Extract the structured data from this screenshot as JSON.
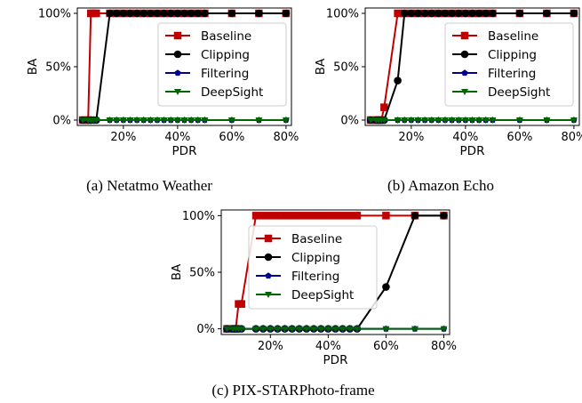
{
  "colors": {
    "Baseline": "#c00000",
    "Clipping": "#000000",
    "Filtering": "#00008b",
    "DeepSight": "#006400"
  },
  "chart_data": [
    {
      "type": "line",
      "caption": "(a) Netatmo Weather",
      "xlabel": "PDR",
      "ylabel": "BA",
      "xlim": [
        3,
        82
      ],
      "ylim": [
        -5,
        105
      ],
      "xticks": [
        {
          "v": 20,
          "label": "20%"
        },
        {
          "v": 40,
          "label": "40%"
        },
        {
          "v": 60,
          "label": "60%"
        },
        {
          "v": 80,
          "label": "80%"
        }
      ],
      "yticks": [
        {
          "v": 0,
          "label": "0%"
        },
        {
          "v": 50,
          "label": "50%"
        },
        {
          "v": 100,
          "label": "100%"
        }
      ],
      "legend_position": "center-right",
      "series": [
        {
          "name": "Baseline",
          "marker": "square",
          "x": [
            5,
            7,
            8,
            9,
            10,
            15,
            17.5,
            20,
            22.5,
            25,
            27.5,
            30,
            32.5,
            35,
            37.5,
            40,
            42.5,
            45,
            47.5,
            50,
            60,
            70,
            80
          ],
          "y": [
            0,
            0,
            100,
            100,
            100,
            100,
            100,
            100,
            100,
            100,
            100,
            100,
            100,
            100,
            100,
            100,
            100,
            100,
            100,
            100,
            100,
            100,
            100
          ]
        },
        {
          "name": "Clipping",
          "marker": "circle",
          "x": [
            5,
            7,
            8,
            9,
            10,
            15,
            17.5,
            20,
            22.5,
            25,
            27.5,
            30,
            32.5,
            35,
            37.5,
            40,
            42.5,
            45,
            47.5,
            50,
            60,
            70,
            80
          ],
          "y": [
            0,
            0,
            0,
            0,
            0,
            100,
            100,
            100,
            100,
            100,
            100,
            100,
            100,
            100,
            100,
            100,
            100,
            100,
            100,
            100,
            100,
            100,
            100
          ]
        },
        {
          "name": "Filtering",
          "marker": "pentagon",
          "x": [
            5,
            7,
            8,
            9,
            10,
            15,
            17.5,
            20,
            22.5,
            25,
            27.5,
            30,
            32.5,
            35,
            37.5,
            40,
            42.5,
            45,
            47.5,
            50,
            60,
            70,
            80
          ],
          "y": [
            0,
            0,
            0,
            0,
            0,
            0,
            0,
            0,
            0,
            0,
            0,
            0,
            0,
            0,
            0,
            0,
            0,
            0,
            0,
            0,
            0,
            0,
            0
          ]
        },
        {
          "name": "DeepSight",
          "marker": "triangle-down",
          "x": [
            5,
            7,
            8,
            9,
            10,
            15,
            17.5,
            20,
            22.5,
            25,
            27.5,
            30,
            32.5,
            35,
            37.5,
            40,
            42.5,
            45,
            47.5,
            50,
            60,
            70,
            80
          ],
          "y": [
            0,
            0,
            0,
            0,
            0,
            0,
            0,
            0,
            0,
            0,
            0,
            0,
            0,
            0,
            0,
            0,
            0,
            0,
            0,
            0,
            0,
            0,
            0
          ]
        }
      ]
    },
    {
      "type": "line",
      "caption": "(b) Amazon Echo",
      "xlabel": "PDR",
      "ylabel": "BA",
      "xlim": [
        3,
        82
      ],
      "ylim": [
        -5,
        105
      ],
      "xticks": [
        {
          "v": 20,
          "label": "20%"
        },
        {
          "v": 40,
          "label": "40%"
        },
        {
          "v": 60,
          "label": "60%"
        },
        {
          "v": 80,
          "label": "80%"
        }
      ],
      "yticks": [
        {
          "v": 0,
          "label": "0%"
        },
        {
          "v": 50,
          "label": "50%"
        },
        {
          "v": 100,
          "label": "100%"
        }
      ],
      "legend_position": "center-right",
      "series": [
        {
          "name": "Baseline",
          "marker": "square",
          "x": [
            5,
            7,
            8,
            9,
            10,
            15,
            17.5,
            20,
            22.5,
            25,
            27.5,
            30,
            32.5,
            35,
            37.5,
            40,
            42.5,
            45,
            47.5,
            50,
            60,
            70,
            80
          ],
          "y": [
            0,
            0,
            0,
            0,
            12,
            100,
            100,
            100,
            100,
            100,
            100,
            100,
            100,
            100,
            100,
            100,
            100,
            100,
            100,
            100,
            100,
            100,
            100
          ]
        },
        {
          "name": "Clipping",
          "marker": "circle",
          "x": [
            5,
            7,
            8,
            9,
            10,
            15,
            17.5,
            20,
            22.5,
            25,
            27.5,
            30,
            32.5,
            35,
            37.5,
            40,
            42.5,
            45,
            47.5,
            50,
            60,
            70,
            80
          ],
          "y": [
            0,
            0,
            0,
            0,
            0,
            37,
            100,
            100,
            100,
            100,
            100,
            100,
            100,
            100,
            100,
            100,
            100,
            100,
            100,
            100,
            100,
            100,
            100
          ]
        },
        {
          "name": "Filtering",
          "marker": "pentagon",
          "x": [
            5,
            7,
            8,
            9,
            10,
            15,
            17.5,
            20,
            22.5,
            25,
            27.5,
            30,
            32.5,
            35,
            37.5,
            40,
            42.5,
            45,
            47.5,
            50,
            60,
            70,
            80
          ],
          "y": [
            0,
            0,
            0,
            0,
            0,
            0,
            0,
            0,
            0,
            0,
            0,
            0,
            0,
            0,
            0,
            0,
            0,
            0,
            0,
            0,
            0,
            0,
            0
          ]
        },
        {
          "name": "DeepSight",
          "marker": "triangle-down",
          "x": [
            5,
            7,
            8,
            9,
            10,
            15,
            17.5,
            20,
            22.5,
            25,
            27.5,
            30,
            32.5,
            35,
            37.5,
            40,
            42.5,
            45,
            47.5,
            50,
            60,
            70,
            80
          ],
          "y": [
            0,
            0,
            0,
            0,
            0,
            0,
            0,
            0,
            0,
            0,
            0,
            0,
            0,
            0,
            0,
            0,
            0,
            0,
            0,
            0,
            0,
            0,
            0
          ]
        }
      ]
    },
    {
      "type": "line",
      "caption": "(c) PIX-STARPhoto-frame",
      "xlabel": "PDR",
      "ylabel": "BA",
      "xlim": [
        3,
        82
      ],
      "ylim": [
        -5,
        105
      ],
      "xticks": [
        {
          "v": 20,
          "label": "20%"
        },
        {
          "v": 40,
          "label": "40%"
        },
        {
          "v": 60,
          "label": "60%"
        },
        {
          "v": 80,
          "label": "80%"
        }
      ],
      "yticks": [
        {
          "v": 0,
          "label": "0%"
        },
        {
          "v": 50,
          "label": "50%"
        },
        {
          "v": 100,
          "label": "100%"
        }
      ],
      "legend_position": "center-left",
      "series": [
        {
          "name": "Baseline",
          "marker": "square",
          "x": [
            5,
            7,
            8,
            9,
            10,
            15,
            17.5,
            20,
            22.5,
            25,
            27.5,
            30,
            32.5,
            35,
            37.5,
            40,
            42.5,
            45,
            47.5,
            50,
            60,
            70,
            80
          ],
          "y": [
            0,
            0,
            0,
            22,
            22,
            100,
            100,
            100,
            100,
            100,
            100,
            100,
            100,
            100,
            100,
            100,
            100,
            100,
            100,
            100,
            100,
            100,
            100
          ]
        },
        {
          "name": "Clipping",
          "marker": "circle",
          "x": [
            5,
            7,
            8,
            9,
            10,
            15,
            17.5,
            20,
            22.5,
            25,
            27.5,
            30,
            32.5,
            35,
            37.5,
            40,
            42.5,
            45,
            47.5,
            50,
            60,
            70,
            80
          ],
          "y": [
            0,
            0,
            0,
            0,
            0,
            0,
            0,
            0,
            0,
            0,
            0,
            0,
            0,
            0,
            0,
            0,
            0,
            0,
            0,
            0,
            37,
            100,
            100
          ]
        },
        {
          "name": "Filtering",
          "marker": "pentagon",
          "x": [
            5,
            7,
            8,
            9,
            10,
            15,
            17.5,
            20,
            22.5,
            25,
            27.5,
            30,
            32.5,
            35,
            37.5,
            40,
            42.5,
            45,
            47.5,
            50,
            60,
            70,
            80
          ],
          "y": [
            0,
            0,
            0,
            0,
            0,
            0,
            0,
            0,
            0,
            0,
            0,
            0,
            0,
            0,
            0,
            0,
            0,
            0,
            0,
            0,
            0,
            0,
            0
          ]
        },
        {
          "name": "DeepSight",
          "marker": "triangle-down",
          "x": [
            5,
            7,
            8,
            9,
            10,
            15,
            17.5,
            20,
            22.5,
            25,
            27.5,
            30,
            32.5,
            35,
            37.5,
            40,
            42.5,
            45,
            47.5,
            50,
            60,
            70,
            80
          ],
          "y": [
            0,
            0,
            0,
            0,
            0,
            0,
            0,
            0,
            0,
            0,
            0,
            0,
            0,
            0,
            0,
            0,
            0,
            0,
            0,
            0,
            0,
            0,
            0
          ]
        }
      ]
    }
  ]
}
